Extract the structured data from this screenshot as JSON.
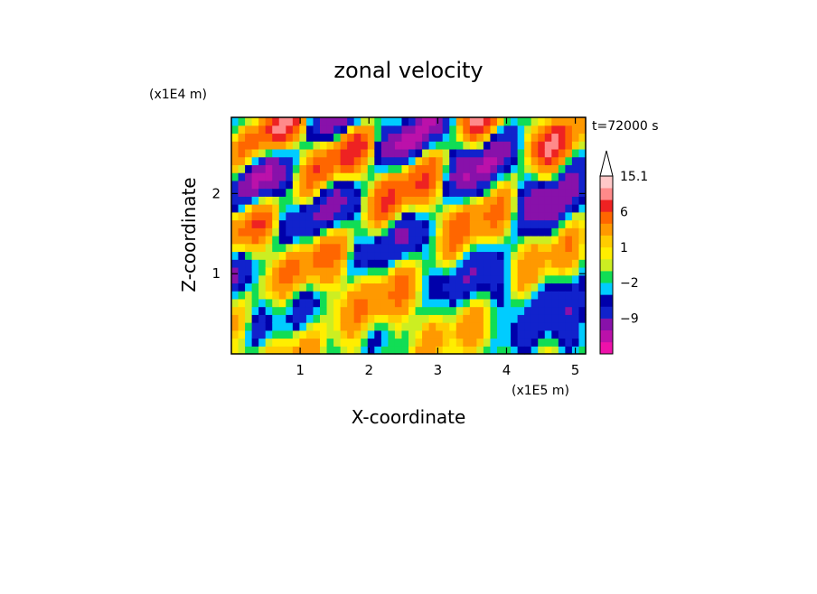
{
  "chart_data": {
    "type": "heatmap",
    "title": "zonal velocity",
    "xlabel": "X-coordinate",
    "ylabel": "Z-coordinate",
    "x_unit": "(x1E5 m)",
    "y_unit": "(x1E4 m)",
    "time_label": "t=72000 s",
    "xlim": [
      0,
      5.15
    ],
    "ylim": [
      0,
      2.95
    ],
    "x_ticks": [
      1,
      2,
      3,
      4,
      5
    ],
    "x_tick_labels": [
      "1",
      "2",
      "3",
      "4",
      "5"
    ],
    "y_ticks": [
      1,
      2
    ],
    "y_tick_labels": [
      "1",
      "2"
    ],
    "colorbar": {
      "levels": [
        -15,
        -12,
        -9,
        -6,
        -3,
        -2,
        -1,
        0,
        1,
        2,
        3,
        6,
        9,
        12,
        15.1
      ],
      "colors": [
        "#ee11aa",
        "#bb11aa",
        "#8811aa",
        "#1122cc",
        "#0000aa",
        "#00ccff",
        "#11dd55",
        "#ccee22",
        "#ffee00",
        "#ffcc00",
        "#ff9900",
        "#ff6600",
        "#ee2222",
        "#ff8a8a",
        "#ffc8c8"
      ],
      "tick_labels": [
        {
          "value": -9,
          "label": "−9"
        },
        {
          "value": -2,
          "label": "−2"
        },
        {
          "value": 1,
          "label": "1"
        },
        {
          "value": 6,
          "label": "6"
        },
        {
          "value": 15.1,
          "label": "15.1"
        }
      ]
    },
    "field": {
      "description_grid": "zonal velocity u(x,z) approximated on a 52x30 grid",
      "nx": 52,
      "nz": 30
    }
  }
}
